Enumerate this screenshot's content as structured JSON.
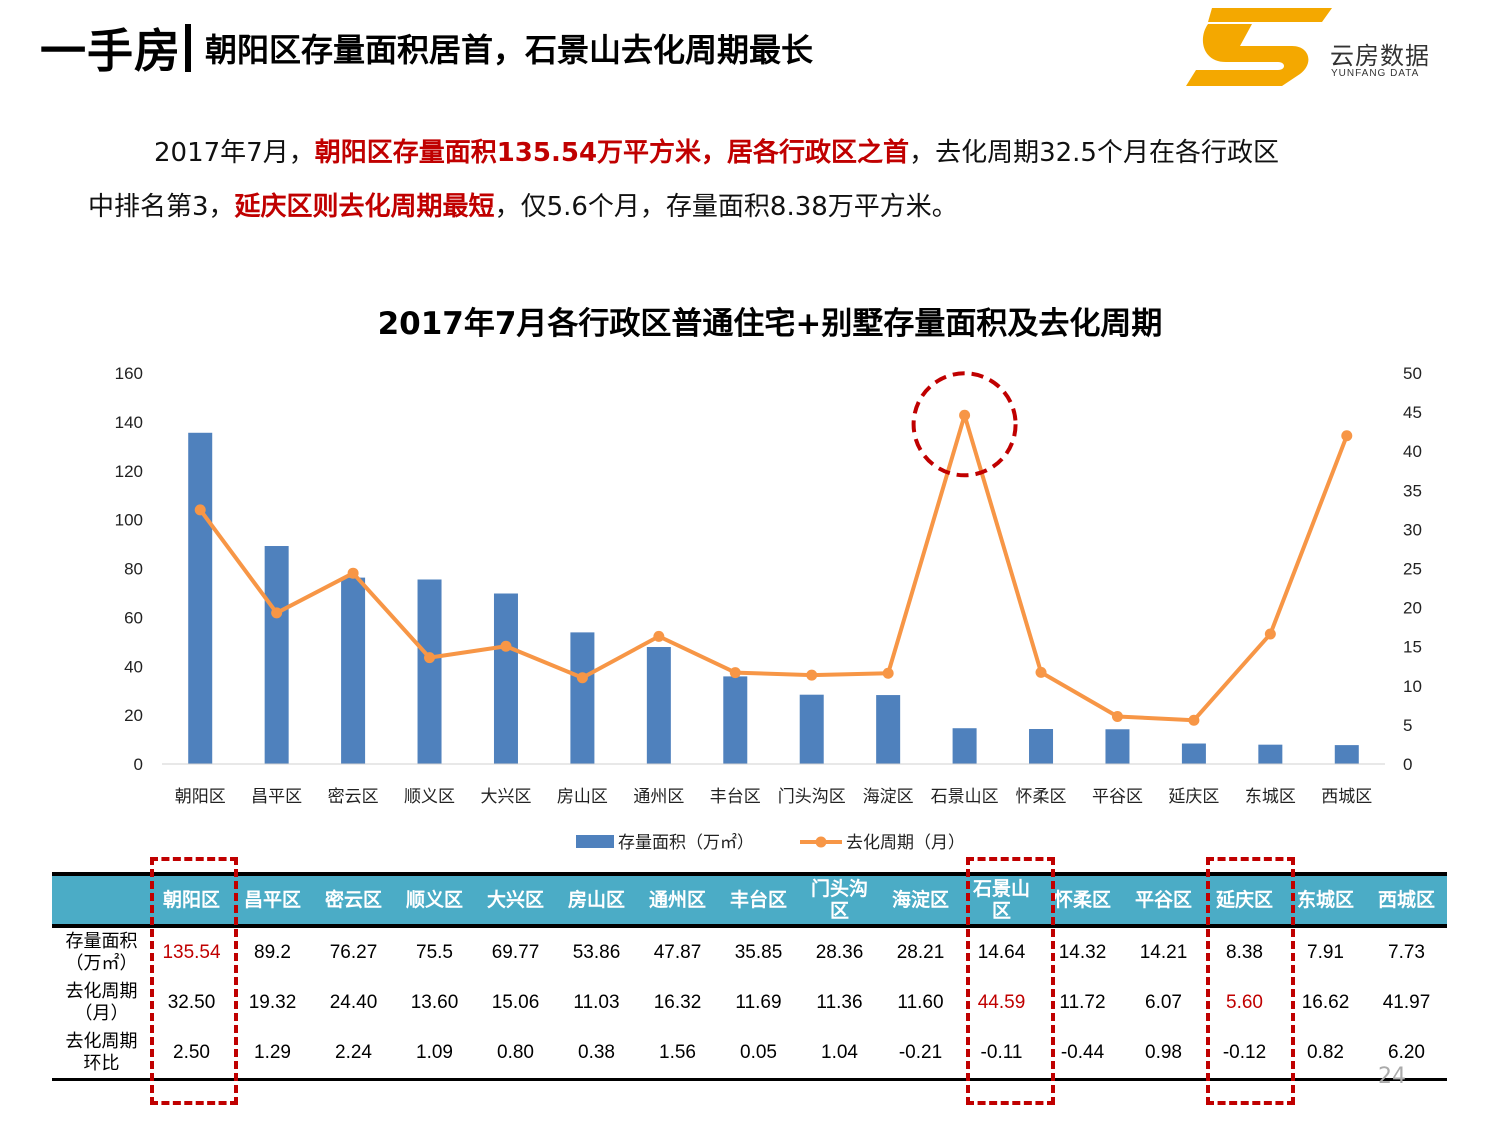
{
  "header": {
    "title_main": "一手房",
    "title_sub": "朝阳区存量面积居首，石景山去化周期最长"
  },
  "logo": {
    "name": "云房数据",
    "sub": "YUNFANG DATA",
    "colors": {
      "primary": "#f4a800"
    }
  },
  "summary": {
    "p1": "2017年7月，",
    "p2": "朝阳区存量面积135.54万平方米，居各行政区之首",
    "p3": "，去化周期32.5个月在各行政区",
    "p4": "中排名第3，",
    "p5": "延庆区则去化周期最短",
    "p6": "，仅5.6个月，存量面积8.38万平方米。"
  },
  "chart_data": {
    "type": "bar",
    "title": "2017年7月各行政区普通住宅+别墅存量面积及去化周期",
    "categories": [
      "朝阳区",
      "昌平区",
      "密云区",
      "顺义区",
      "大兴区",
      "房山区",
      "通州区",
      "丰台区",
      "门头沟区",
      "海淀区",
      "石景山区",
      "怀柔区",
      "平谷区",
      "延庆区",
      "东城区",
      "西城区"
    ],
    "series": [
      {
        "name": "存量面积（万㎡）",
        "type": "bar",
        "axis": "left",
        "color": "#4f81bd",
        "values": [
          135.54,
          89.2,
          76.27,
          75.5,
          69.77,
          53.86,
          47.87,
          35.85,
          28.36,
          28.21,
          14.64,
          14.32,
          14.21,
          8.38,
          7.91,
          7.73
        ]
      },
      {
        "name": "去化周期（月）",
        "type": "line",
        "axis": "right",
        "color": "#f79646",
        "values": [
          32.5,
          19.32,
          24.4,
          13.6,
          15.06,
          11.03,
          16.32,
          11.69,
          11.36,
          11.6,
          44.59,
          11.72,
          6.07,
          5.6,
          16.62,
          41.97
        ]
      }
    ],
    "y_left": {
      "min": 0,
      "max": 160,
      "step": 20
    },
    "y_right": {
      "min": 0,
      "max": 50,
      "step": 5
    },
    "grid": false,
    "legend": "bottom",
    "highlight": "石景山区"
  },
  "table": {
    "row_labels": [
      {
        "l1": "存量面积",
        "l2": "（万㎡）"
      },
      {
        "l1": "去化周期",
        "l2": "（月）"
      },
      {
        "l1": "去化周期",
        "l2": "环比"
      }
    ],
    "headers": [
      "朝阳区",
      "昌平区",
      "密云区",
      "顺义区",
      "大兴区",
      "房山区",
      "通州区",
      "丰台区",
      "门头沟区",
      "海淀区",
      "石景山区",
      "怀柔区",
      "平谷区",
      "延庆区",
      "东城区",
      "西城区"
    ],
    "rows": [
      [
        "135.54",
        "89.2",
        "76.27",
        "75.5",
        "69.77",
        "53.86",
        "47.87",
        "35.85",
        "28.36",
        "28.21",
        "14.64",
        "14.32",
        "14.21",
        "8.38",
        "7.91",
        "7.73"
      ],
      [
        "32.50",
        "19.32",
        "24.40",
        "13.60",
        "15.06",
        "11.03",
        "16.32",
        "11.69",
        "11.36",
        "11.60",
        "44.59",
        "11.72",
        "6.07",
        "5.60",
        "16.62",
        "41.97"
      ],
      [
        "2.50",
        "1.29",
        "2.24",
        "1.09",
        "0.80",
        "0.38",
        "1.56",
        "0.05",
        "1.04",
        "-0.21",
        "-0.11",
        "-0.44",
        "0.98",
        "-0.12",
        "0.82",
        "6.20"
      ]
    ],
    "highlight_color": "#c00000",
    "header_color": "#4bacc6"
  },
  "page_number": "24"
}
